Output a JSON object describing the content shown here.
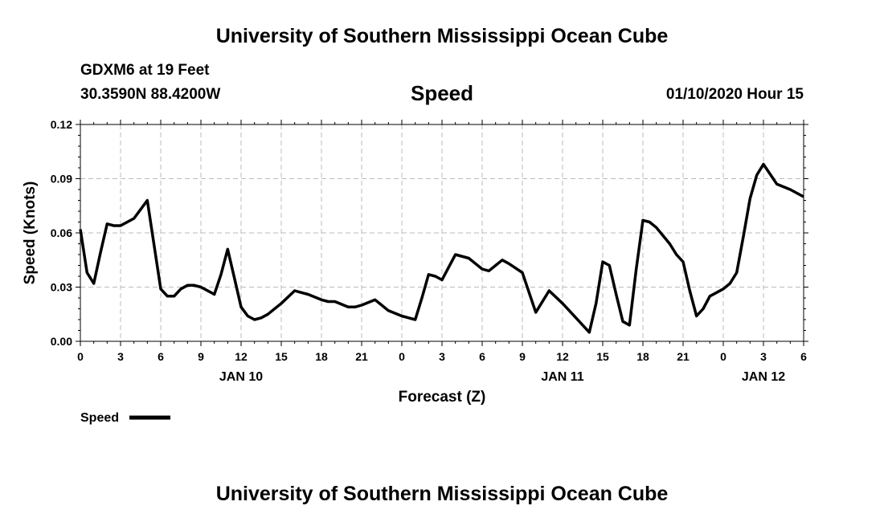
{
  "page": {
    "title_top": "University of Southern Mississippi Ocean Cube",
    "title_bottom": "University of Southern Mississippi Ocean Cube",
    "station": "GDXM6 at 19 Feet",
    "location": "30.3590N 88.4200W",
    "variable": "Speed",
    "run": "01/10/2020 Hour 15"
  },
  "colors": {
    "line": "#000000",
    "grid": "#bbbbbb",
    "background": "#ffffff"
  },
  "chart_data": {
    "type": "line",
    "title": "Speed",
    "xlabel": "Forecast (Z)",
    "ylabel": "Speed (Knots)",
    "ylim": [
      0,
      0.12
    ],
    "xlim": [
      0,
      54
    ],
    "yticks": [
      0,
      0.03,
      0.06,
      0.09,
      0.12
    ],
    "ytick_labels": [
      "0.00",
      "0.03",
      "0.06",
      "0.09",
      "0.12"
    ],
    "xticks": [
      0,
      3,
      6,
      9,
      12,
      15,
      18,
      21,
      24,
      27,
      30,
      33,
      36,
      39,
      42,
      45,
      48,
      51,
      54
    ],
    "xtick_labels": [
      "0",
      "3",
      "6",
      "9",
      "12",
      "15",
      "18",
      "21",
      "0",
      "3",
      "6",
      "9",
      "12",
      "15",
      "18",
      "21",
      "0",
      "3",
      "6"
    ],
    "day_labels": [
      {
        "label": "JAN 10",
        "at": 12
      },
      {
        "label": "JAN 11",
        "at": 36
      },
      {
        "label": "JAN 12",
        "at": 51
      }
    ],
    "grid": true,
    "legend": {
      "label": "Speed",
      "placement": "bottom-left"
    },
    "series": [
      {
        "name": "Speed",
        "x": [
          0,
          0.5,
          1,
          1.5,
          2,
          2.5,
          3,
          4,
          5,
          6,
          6.5,
          7,
          7.5,
          8,
          8.5,
          9,
          10,
          10.5,
          11,
          11.5,
          12,
          12.5,
          13,
          13.5,
          14,
          15,
          16,
          16.5,
          17,
          18,
          18.5,
          19,
          20,
          20.5,
          21,
          22,
          22.5,
          23,
          24,
          25,
          25.5,
          26,
          26.5,
          27,
          27.5,
          28,
          29,
          29.5,
          30,
          30.5,
          31,
          31.5,
          32,
          33,
          34,
          35,
          36,
          37,
          38,
          38.5,
          39,
          39.5,
          40,
          40.5,
          41,
          41.5,
          42,
          42.5,
          43,
          44,
          44.5,
          45,
          45.5,
          46,
          46.5,
          47,
          47.5,
          48,
          48.5,
          49,
          49.5,
          50,
          50.5,
          51,
          52,
          53,
          54
        ],
        "values": [
          0.062,
          0.038,
          0.032,
          0.049,
          0.065,
          0.064,
          0.064,
          0.068,
          0.078,
          0.029,
          0.025,
          0.025,
          0.029,
          0.031,
          0.031,
          0.03,
          0.026,
          0.037,
          0.051,
          0.035,
          0.019,
          0.014,
          0.012,
          0.013,
          0.015,
          0.021,
          0.028,
          0.027,
          0.026,
          0.023,
          0.022,
          0.022,
          0.019,
          0.019,
          0.02,
          0.023,
          0.02,
          0.017,
          0.014,
          0.012,
          0.024,
          0.037,
          0.036,
          0.034,
          0.041,
          0.048,
          0.046,
          0.043,
          0.04,
          0.039,
          0.042,
          0.045,
          0.043,
          0.038,
          0.016,
          0.028,
          0.021,
          0.013,
          0.005,
          0.021,
          0.044,
          0.042,
          0.026,
          0.011,
          0.009,
          0.04,
          0.067,
          0.066,
          0.063,
          0.054,
          0.048,
          0.044,
          0.028,
          0.014,
          0.018,
          0.025,
          0.027,
          0.029,
          0.032,
          0.038,
          0.058,
          0.079,
          0.092,
          0.098,
          0.087,
          0.084,
          0.08
        ]
      }
    ]
  }
}
